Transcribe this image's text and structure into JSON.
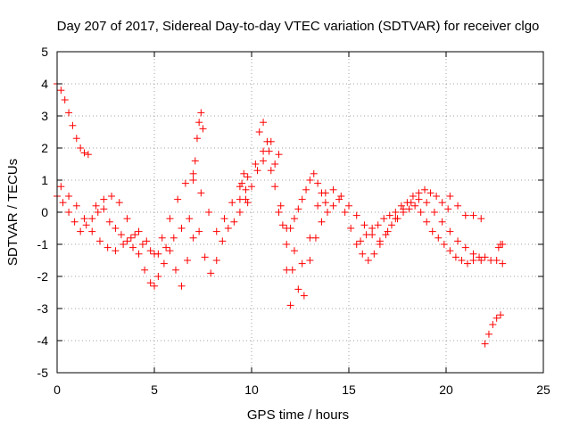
{
  "chart_data": {
    "type": "scatter",
    "title": "Day 207 of 2017, Sidereal Day-to-day VTEC variation (SDTVAR) for receiver clgo",
    "xlabel": "GPS time / hours",
    "ylabel": "SDTVAR / TECUs",
    "xlim": [
      0,
      25
    ],
    "ylim": [
      -5,
      5
    ],
    "x_ticks": [
      0,
      5,
      10,
      15,
      20,
      25
    ],
    "y_ticks": [
      -5,
      -4,
      -3,
      -2,
      -1,
      0,
      1,
      2,
      3,
      4,
      5
    ],
    "grid": true,
    "marker": "+",
    "color": "#ff0000",
    "series": [
      {
        "name": "SDTVAR",
        "x": [
          0.0,
          0.2,
          0.4,
          0.6,
          0.8,
          1.0,
          1.2,
          1.4,
          1.6,
          0.0,
          0.3,
          0.6,
          0.9,
          1.2,
          1.5,
          1.8,
          2.1,
          2.4,
          2.7,
          3.0,
          3.3,
          3.6,
          3.9,
          4.2,
          4.5,
          4.8,
          5.0,
          5.2,
          5.5,
          5.8,
          6.1,
          6.4,
          6.7,
          7.0,
          7.3,
          7.6,
          7.9,
          8.2,
          8.5,
          8.8,
          9.1,
          9.4,
          9.7,
          10.0,
          10.3,
          10.6,
          10.9,
          11.2,
          11.5,
          11.8,
          12.1,
          12.4,
          12.7,
          13.0,
          13.3,
          13.6,
          13.9,
          14.2,
          14.5,
          14.8,
          15.1,
          15.4,
          15.7,
          16.0,
          16.3,
          16.6,
          16.9,
          17.2,
          17.5,
          17.8,
          18.1,
          18.4,
          18.7,
          19.0,
          19.3,
          19.6,
          19.9,
          20.2,
          20.5,
          20.8,
          21.1,
          21.4,
          21.7,
          22.0,
          22.3,
          22.6,
          22.9,
          0.2,
          0.6,
          1.0,
          1.4,
          1.8,
          2.2,
          2.6,
          3.0,
          3.4,
          3.8,
          4.2,
          4.6,
          5.0,
          5.4,
          5.8,
          6.2,
          6.6,
          7.0,
          7.4,
          7.8,
          8.2,
          8.6,
          9.0,
          9.4,
          9.8,
          10.2,
          10.6,
          11.0,
          11.4,
          11.8,
          12.2,
          12.6,
          13.0,
          13.4,
          13.8,
          14.2,
          14.6,
          15.0,
          15.4,
          15.8,
          16.2,
          16.6,
          17.0,
          17.4,
          17.8,
          18.2,
          18.6,
          19.0,
          19.4,
          19.8,
          20.2,
          20.6,
          21.0,
          21.4,
          21.8,
          2.0,
          2.4,
          2.8,
          3.2,
          3.6,
          4.0,
          4.4,
          4.8,
          5.2,
          5.6,
          6.0,
          6.4,
          6.8,
          7.0,
          7.1,
          7.2,
          7.3,
          7.4,
          7.5,
          9.4,
          9.5,
          9.6,
          9.7,
          9.8,
          10.4,
          10.6,
          10.8,
          11.0,
          11.2,
          11.4,
          11.6,
          11.8,
          12.0,
          12.0,
          12.2,
          12.4,
          12.6,
          12.8,
          13.0,
          13.2,
          13.4,
          13.6,
          13.8,
          15.6,
          15.9,
          16.2,
          16.5,
          16.8,
          17.1,
          17.4,
          17.7,
          18.0,
          18.3,
          18.6,
          18.9,
          19.2,
          19.5,
          19.8,
          20.1,
          20.2,
          20.6,
          21.0,
          21.4,
          21.8,
          22.0,
          22.2,
          22.4,
          22.6,
          22.8,
          22.7,
          22.8,
          22.9
        ],
        "y": [
          4.0,
          3.8,
          3.5,
          3.1,
          2.7,
          2.3,
          2.0,
          1.85,
          1.8,
          0.5,
          0.3,
          0.0,
          -0.3,
          -0.6,
          -0.4,
          -0.2,
          0.0,
          0.1,
          -0.3,
          -0.5,
          -0.7,
          -0.9,
          -1.1,
          -1.3,
          -1.8,
          -2.2,
          -2.3,
          -2.0,
          -1.6,
          -1.2,
          -1.8,
          -2.3,
          -1.5,
          -0.8,
          -0.6,
          -1.4,
          -1.9,
          -1.5,
          -0.9,
          -0.5,
          -0.3,
          0.0,
          0.4,
          0.8,
          1.3,
          1.6,
          1.9,
          1.5,
          0.2,
          -1.0,
          -1.8,
          -2.4,
          -2.6,
          -1.5,
          -0.8,
          -0.3,
          0.0,
          0.2,
          0.4,
          0.0,
          -0.5,
          -1.0,
          -1.3,
          -1.5,
          -1.3,
          -1.0,
          -0.7,
          -0.4,
          -0.2,
          0.0,
          0.1,
          0.2,
          0.0,
          -0.3,
          -0.6,
          -0.8,
          -1.0,
          -1.2,
          -1.4,
          -1.5,
          -1.6,
          -1.5,
          -1.4,
          -1.4,
          -1.5,
          -1.5,
          -1.6,
          0.8,
          0.5,
          0.2,
          -0.2,
          -0.6,
          -0.9,
          -1.1,
          -1.2,
          -1.0,
          -0.8,
          -0.6,
          -0.9,
          -1.3,
          -0.8,
          -0.2,
          0.4,
          0.9,
          1.2,
          0.6,
          0.0,
          -0.6,
          -0.2,
          0.3,
          0.8,
          1.1,
          1.5,
          1.9,
          2.2,
          1.8,
          -0.5,
          -1.2,
          -1.6,
          -0.8,
          0.2,
          0.6,
          0.7,
          0.5,
          0.2,
          -0.1,
          -0.4,
          -0.7,
          -0.9,
          -0.6,
          -0.2,
          0.1,
          0.3,
          0.4,
          0.3,
          0.0,
          -0.3,
          -0.6,
          -0.9,
          -1.1,
          -1.3,
          -1.5,
          0.2,
          0.4,
          0.5,
          0.3,
          -0.2,
          -0.7,
          -1.0,
          -1.2,
          -1.3,
          -1.1,
          -0.8,
          -0.5,
          -0.2,
          1.0,
          1.6,
          2.3,
          2.8,
          3.1,
          2.6,
          0.4,
          0.9,
          1.2,
          0.7,
          0.3,
          2.5,
          2.8,
          2.2,
          1.3,
          0.8,
          0.0,
          -0.4,
          -1.8,
          -2.9,
          -0.5,
          -0.2,
          0.1,
          0.4,
          0.7,
          1.0,
          1.2,
          0.9,
          0.6,
          0.3,
          -0.9,
          -0.7,
          -0.5,
          -0.4,
          -0.2,
          -0.1,
          0.0,
          0.2,
          0.3,
          0.5,
          0.6,
          0.7,
          0.6,
          0.5,
          0.3,
          0.1,
          0.5,
          0.2,
          -0.1,
          -0.1,
          -0.2,
          -4.1,
          -3.8,
          -3.5,
          -3.3,
          -3.2,
          -1.1,
          -1.0,
          -1.0
        ]
      }
    ]
  }
}
